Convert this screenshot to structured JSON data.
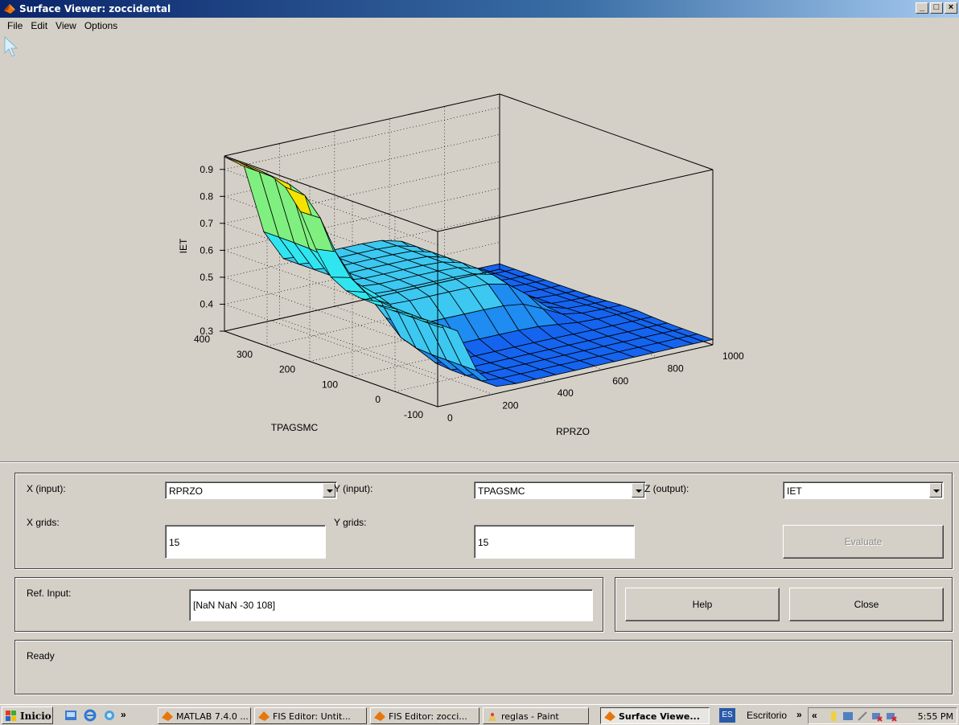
{
  "window": {
    "title": "Surface Viewer: zoccidental",
    "buttons": [
      "_",
      "□",
      "×"
    ]
  },
  "menu": [
    "File",
    "Edit",
    "View",
    "Options"
  ],
  "plot": {
    "zlabel": "IET",
    "xlabel": "RPRZO",
    "ylabel": "TPAGSMC",
    "z_ticks": [
      "0.9",
      "0.8",
      "0.7",
      "0.6",
      "0.5",
      "0.4",
      "0.3"
    ],
    "y_ticks": [
      "400",
      "300",
      "200",
      "100",
      "0",
      "-100"
    ],
    "x_ticks": [
      "0",
      "200",
      "400",
      "600",
      "800",
      "1000"
    ],
    "colors": {
      "yellow": "#f5e200",
      "green": "#7ff07f",
      "cyan": "#2fe6f0",
      "light_blue": "#3cc8f0",
      "mid_blue": "#1e8cf0",
      "dark_blue": "#1464f0"
    }
  },
  "chart_data": {
    "type": "surface",
    "xlabel": "RPRZO",
    "ylabel": "TPAGSMC",
    "zlabel": "IET",
    "xlim": [
      0,
      1000
    ],
    "ylim": [
      -100,
      400
    ],
    "zlim": [
      0.3,
      0.95
    ],
    "grid": true,
    "x_grid_count": 15,
    "y_grid_count": 15
  },
  "controls": {
    "x_input_label": "X (input):",
    "x_input_value": "RPRZO",
    "y_input_label": "Y (input):",
    "y_input_value": "TPAGSMC",
    "z_output_label": "Z (output):",
    "z_output_value": "IET",
    "x_grids_label": "X grids:",
    "x_grids_value": "15",
    "y_grids_label": "Y grids:",
    "y_grids_value": "15",
    "evaluate_label": "Evaluate",
    "ref_input_label": "Ref. Input:",
    "ref_input_value": "[NaN NaN -30 108]",
    "help_label": "Help",
    "close_label": "Close",
    "status": "Ready"
  },
  "taskbar": {
    "start_label": "Inicio",
    "tasks": [
      {
        "label": "MATLAB 7.4.0 ...",
        "active": false
      },
      {
        "label": "FIS Editor: Untit...",
        "active": false
      },
      {
        "label": "FIS Editor: zocci...",
        "active": false
      },
      {
        "label": "reglas - Paint",
        "active": false
      },
      {
        "label": "Surface Viewe...",
        "active": true
      }
    ],
    "lang": "ES",
    "desktop_label": "Escritorio",
    "clock": "5:55 PM"
  }
}
